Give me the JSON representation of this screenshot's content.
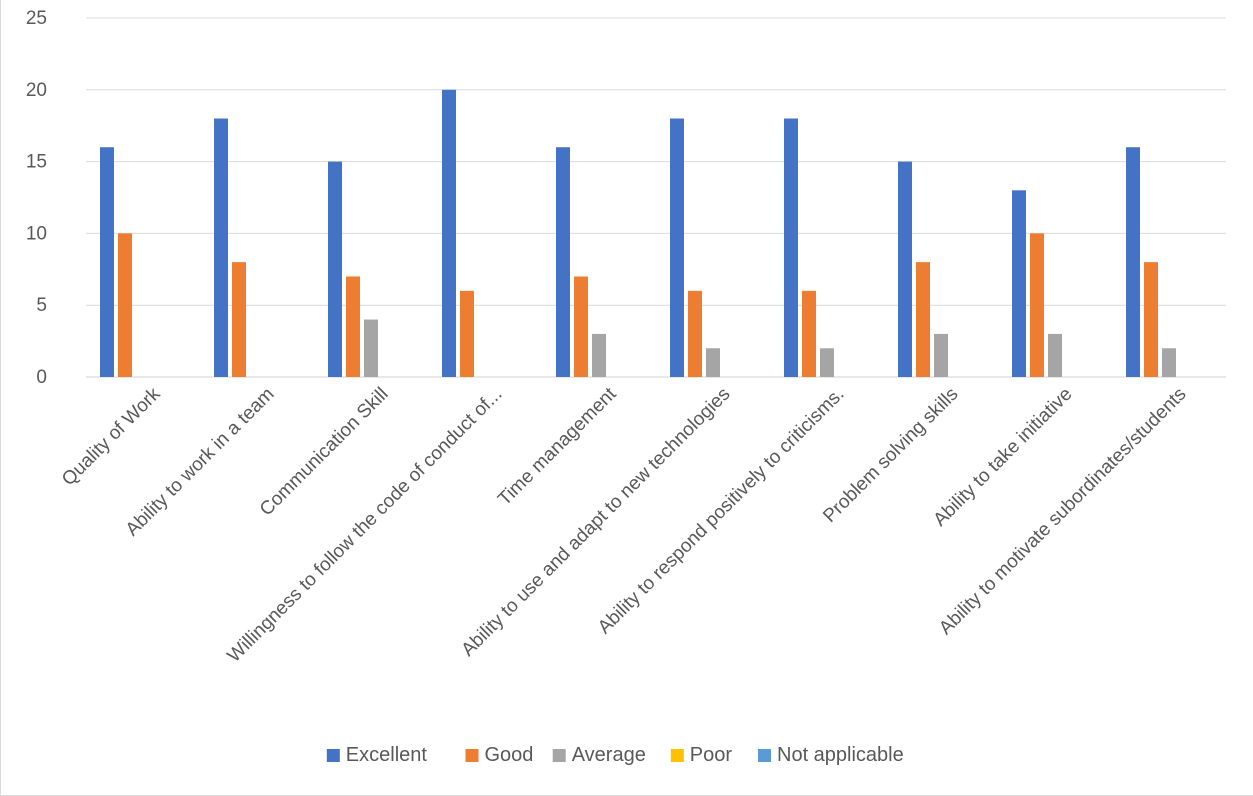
{
  "chart_data": {
    "type": "bar",
    "title": "",
    "xlabel": "",
    "ylabel": "",
    "ylim": [
      0,
      25
    ],
    "yticks": [
      0,
      5,
      10,
      15,
      20,
      25
    ],
    "grid": true,
    "legend_position": "bottom",
    "categories": [
      "Quality of Work",
      "Ability to work in a team",
      "Communication Skill",
      "Willingness to follow the code of conduct of...",
      "Time management",
      "Ability to use and adapt to new technologies",
      "Ability to respond positively to criticisms.",
      "Problem solving skills",
      "Ability to take initiative",
      "Ability to motivate subordinates/students"
    ],
    "series": [
      {
        "name": "Excellent",
        "color": "#4472C4",
        "values": [
          16,
          18,
          15,
          20,
          16,
          18,
          18,
          15,
          13,
          16
        ]
      },
      {
        "name": "Good",
        "color": "#ED7D31",
        "values": [
          10,
          8,
          7,
          6,
          7,
          6,
          6,
          8,
          10,
          8
        ]
      },
      {
        "name": "Average",
        "color": "#A5A5A5",
        "values": [
          0,
          0,
          4,
          0,
          3,
          2,
          2,
          3,
          3,
          2
        ]
      },
      {
        "name": "Poor",
        "color": "#FFC000",
        "values": [
          0,
          0,
          0,
          0,
          0,
          0,
          0,
          0,
          0,
          0
        ]
      },
      {
        "name": "Not applicable",
        "color": "#5B9BD5",
        "values": [
          0,
          0,
          0,
          0,
          0,
          0,
          0,
          0,
          0,
          0
        ]
      }
    ]
  }
}
